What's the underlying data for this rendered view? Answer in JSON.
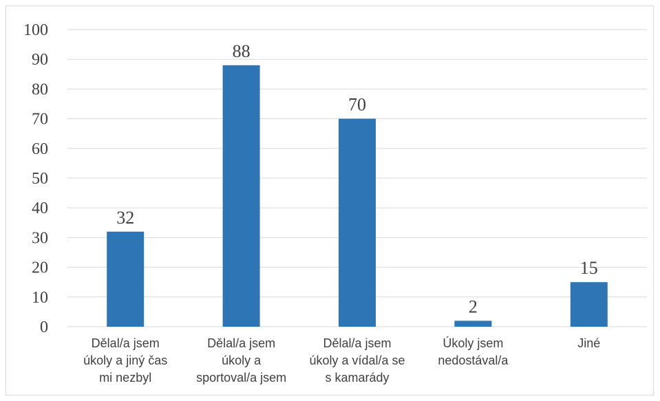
{
  "chart_data": {
    "type": "bar",
    "title": "",
    "xlabel": "",
    "ylabel": "",
    "categories": [
      [
        "Dělal/a jsem",
        "úkoly a jiný čas",
        "mi nezbyl"
      ],
      [
        "Dělal/a jsem",
        "úkoly a",
        "sportoval/a jsem"
      ],
      [
        "Dělal/a jsem",
        "úkoly a vídal/a se",
        "s kamarády"
      ],
      [
        "Úkoly jsem",
        "nedostával/a"
      ],
      [
        "Jiné"
      ]
    ],
    "values": [
      32,
      88,
      70,
      2,
      15
    ],
    "data_labels": [
      "32",
      "88",
      "70",
      "2",
      "15"
    ],
    "ylim": [
      0,
      100
    ],
    "yticks": [
      "0",
      "10",
      "20",
      "30",
      "40",
      "50",
      "60",
      "70",
      "80",
      "90",
      "100"
    ],
    "grid": true,
    "legend": "none",
    "bar_color": "#2e75b6",
    "grid_color": "#d9d9d9",
    "text_color": "#404040"
  }
}
